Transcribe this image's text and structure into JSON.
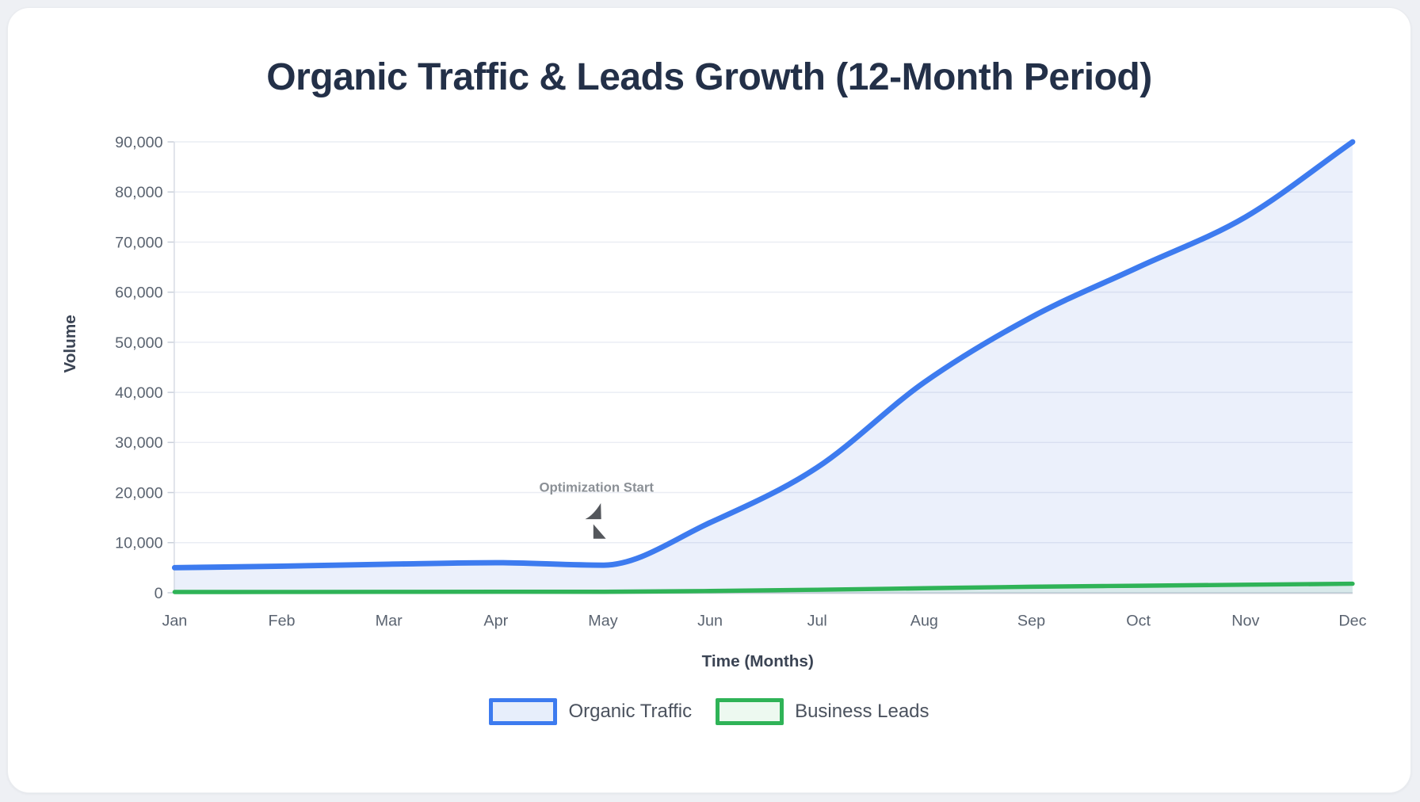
{
  "chart_data": {
    "type": "area",
    "title": "Organic Traffic & Leads Growth (12-Month Period)",
    "xlabel": "Time (Months)",
    "ylabel": "Volume",
    "categories": [
      "Jan",
      "Feb",
      "Mar",
      "Apr",
      "May",
      "Jun",
      "Jul",
      "Aug",
      "Sep",
      "Oct",
      "Nov",
      "Dec"
    ],
    "series": [
      {
        "name": "Organic Traffic",
        "values": [
          5000,
          5300,
          5700,
          6000,
          5500,
          14000,
          25000,
          42000,
          55000,
          65000,
          75000,
          90000
        ],
        "line_color": "#3d7bef",
        "area_fill": "rgba(59,110,220,0.10)",
        "legend_fill": "#e7eefb",
        "line_width": 7
      },
      {
        "name": "Business Leads",
        "values": [
          150,
          160,
          180,
          200,
          190,
          350,
          600,
          900,
          1200,
          1400,
          1600,
          1800
        ],
        "line_color": "#2fb357",
        "area_fill": "rgba(47,179,87,0.10)",
        "legend_fill": "#edf9f0",
        "line_width": 5.5
      }
    ],
    "ylim": [
      0,
      90000
    ],
    "y_tick_step": 10000,
    "y_tick_labels": [
      "0",
      "10,000",
      "20,000",
      "30,000",
      "40,000",
      "50,000",
      "60,000",
      "70,000",
      "80,000",
      "90,000"
    ],
    "grid": true,
    "legend_position": "bottom",
    "annotation": {
      "label": "Optimization Start",
      "month": "May"
    },
    "colors": {
      "grid_line": "#eaedf4",
      "axis_line": "#c6ccd6",
      "tick_mark": "#c9cfda",
      "title_text": "#233048",
      "tick_text": "#5a6370",
      "axis_title_text": "#3b4454",
      "annotation_text": "#8b9096",
      "annotation_arrow": "#54575c",
      "legend_text": "#4b525e"
    }
  }
}
